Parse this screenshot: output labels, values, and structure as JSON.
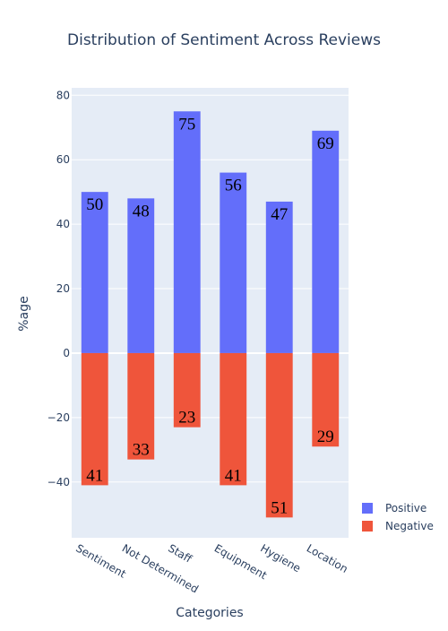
{
  "chart_data": {
    "type": "bar",
    "title": "Distribution of Sentiment Across Reviews",
    "xlabel": "Categories",
    "ylabel": "%age",
    "categories": [
      "Sentiment",
      "Not Determined",
      "Staff",
      "Equipment",
      "Hygiene",
      "Location"
    ],
    "series": [
      {
        "name": "Positive",
        "color": "#636efa",
        "values": [
          50,
          48,
          75,
          56,
          47,
          69
        ],
        "labels": [
          "50",
          "48",
          "75",
          "56",
          "47",
          "69"
        ]
      },
      {
        "name": "Negative",
        "color": "#ef553b",
        "values": [
          -41,
          -33,
          -23,
          -41,
          -51,
          -29
        ],
        "labels": [
          "41",
          "33",
          "23",
          "41",
          "51",
          "29"
        ]
      }
    ],
    "barmode": "relative",
    "ylim": [
      -57.3,
      82.3
    ],
    "yticks": [
      -40,
      -20,
      0,
      20,
      40,
      60,
      80
    ],
    "ytick_labels": [
      "−40",
      "−20",
      "0",
      "20",
      "40",
      "60",
      "80"
    ],
    "grid": true,
    "plot_bgcolor": "#e5ecf6",
    "legend": "right"
  }
}
